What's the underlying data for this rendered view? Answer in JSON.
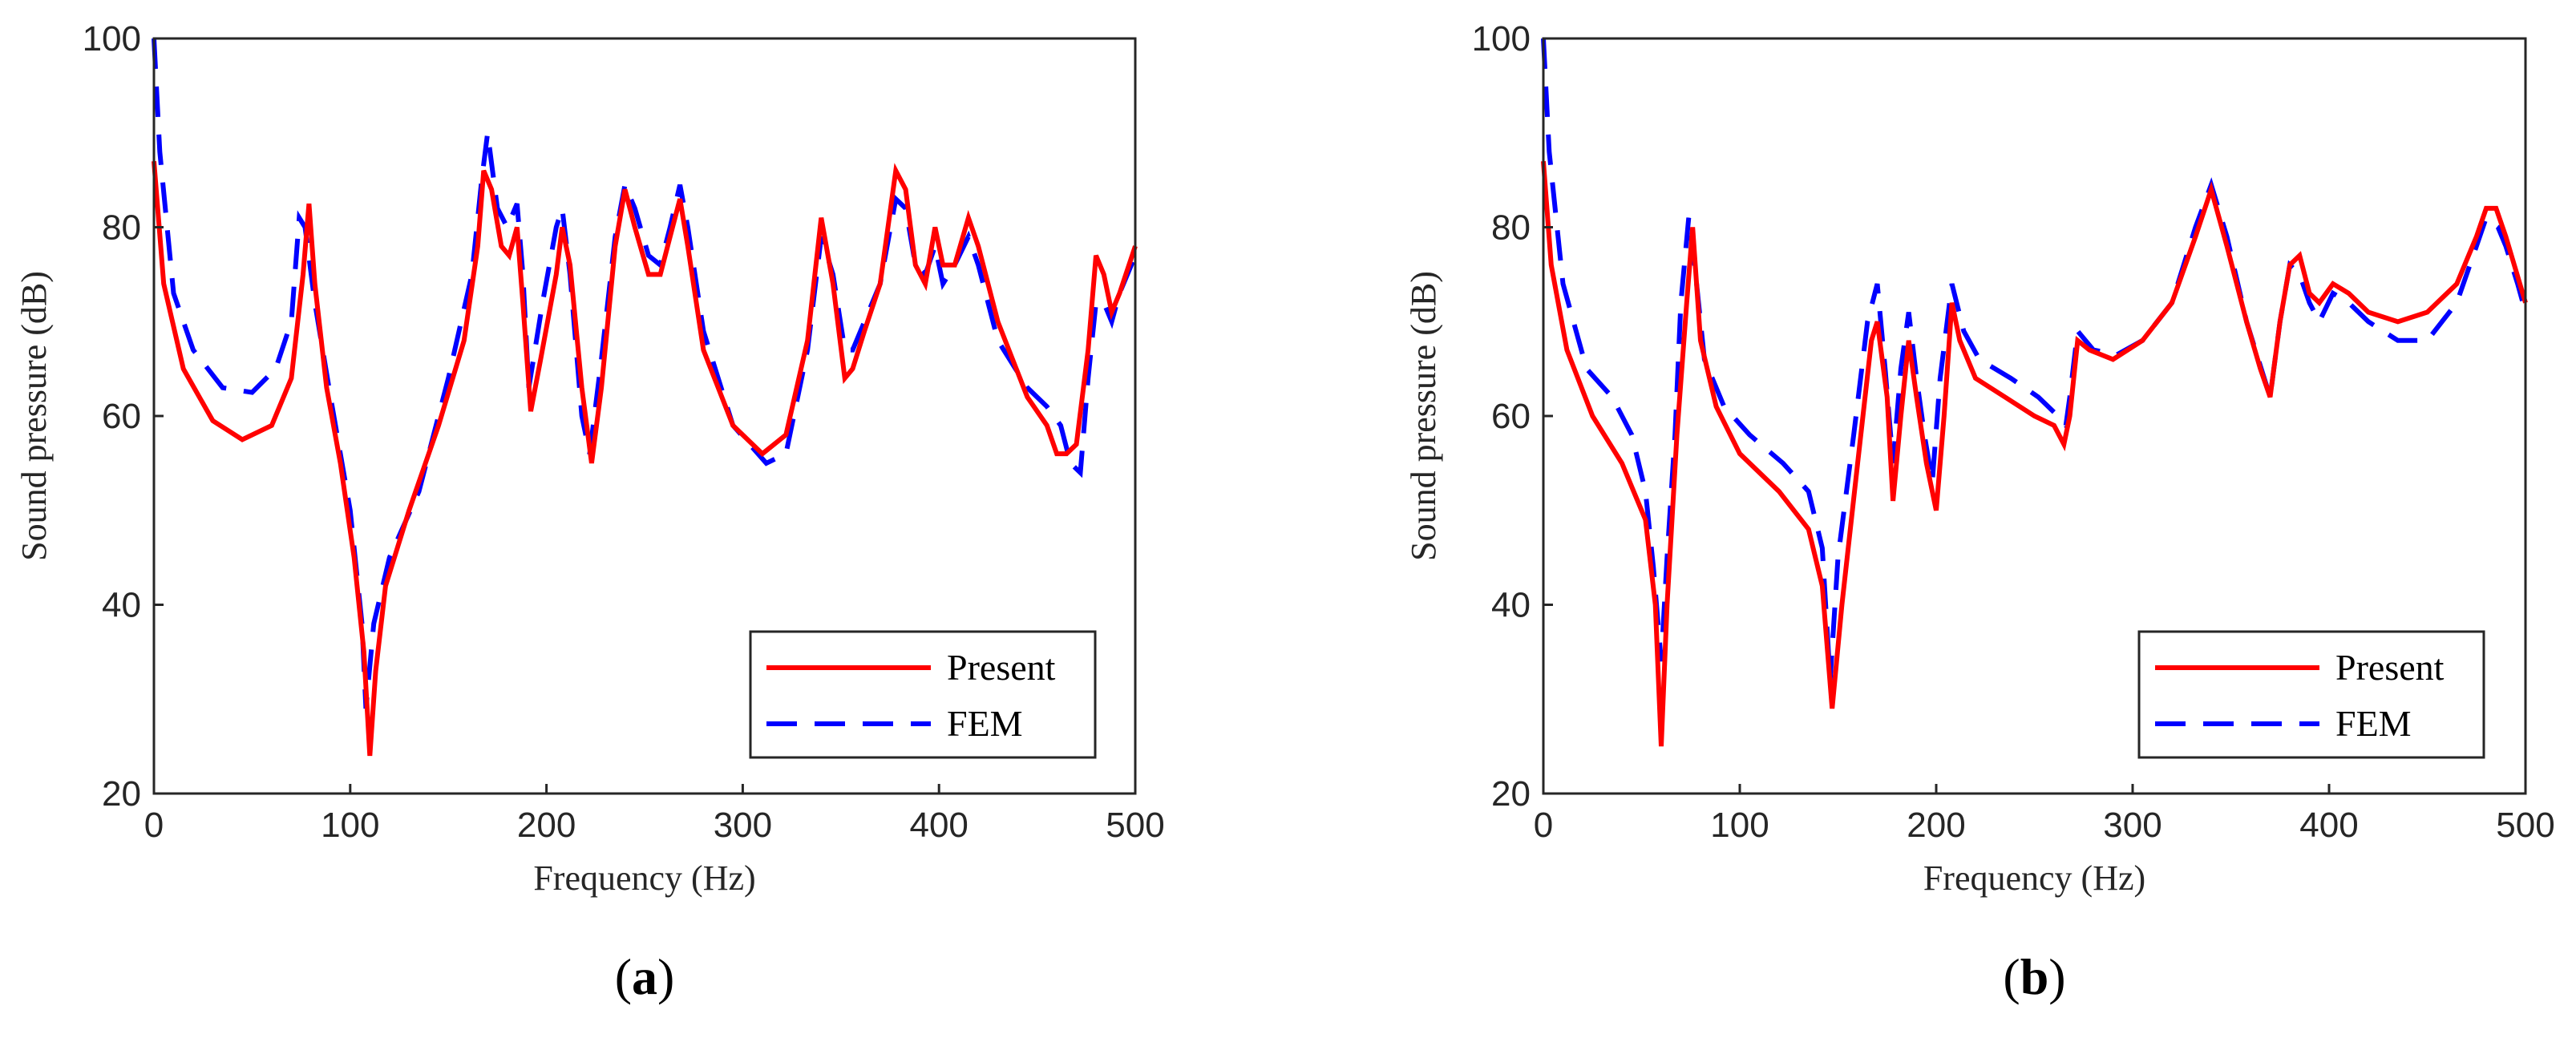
{
  "chart_data": [
    {
      "type": "line",
      "panel_label": "a",
      "xlabel": "Frequency (Hz)",
      "ylabel": "Sound pressure (dB)",
      "xlim": [
        0,
        500
      ],
      "ylim": [
        20,
        100
      ],
      "xticks": [
        0,
        100,
        200,
        300,
        400,
        500
      ],
      "yticks": [
        20,
        40,
        60,
        80,
        100
      ],
      "legend_position": "bottom-right",
      "series": [
        {
          "name": "Present",
          "color": "#ff0000",
          "style": "solid",
          "points": [
            [
              0,
              87
            ],
            [
              5,
              74
            ],
            [
              15,
              65
            ],
            [
              30,
              59.5
            ],
            [
              45,
              57.5
            ],
            [
              60,
              59
            ],
            [
              70,
              64
            ],
            [
              76,
              75
            ],
            [
              79,
              82.5
            ],
            [
              82,
              74
            ],
            [
              88,
              63
            ],
            [
              95,
              55
            ],
            [
              102,
              45
            ],
            [
              107,
              35
            ],
            [
              110,
              24
            ],
            [
              113,
              33
            ],
            [
              118,
              42
            ],
            [
              130,
              50
            ],
            [
              145,
              59
            ],
            [
              158,
              68
            ],
            [
              165,
              78
            ],
            [
              168,
              86
            ],
            [
              172,
              84
            ],
            [
              177,
              78
            ],
            [
              181,
              77
            ],
            [
              185,
              80
            ],
            [
              188,
              72
            ],
            [
              192,
              60.5
            ],
            [
              197,
              66
            ],
            [
              205,
              75
            ],
            [
              208,
              80
            ],
            [
              212,
              76
            ],
            [
              218,
              63
            ],
            [
              223,
              55
            ],
            [
              228,
              63
            ],
            [
              235,
              78
            ],
            [
              240,
              84
            ],
            [
              245,
              80
            ],
            [
              252,
              75
            ],
            [
              258,
              75
            ],
            [
              263,
              79
            ],
            [
              268,
              83
            ],
            [
              272,
              78
            ],
            [
              280,
              67
            ],
            [
              295,
              59
            ],
            [
              310,
              56
            ],
            [
              322,
              58
            ],
            [
              333,
              68
            ],
            [
              340,
              81
            ],
            [
              346,
              74
            ],
            [
              352,
              64
            ],
            [
              356,
              65
            ],
            [
              362,
              69
            ],
            [
              370,
              74
            ],
            [
              378,
              86
            ],
            [
              383,
              84
            ],
            [
              388,
              76
            ],
            [
              393,
              74
            ],
            [
              398,
              80
            ],
            [
              402,
              76
            ],
            [
              408,
              76
            ],
            [
              415,
              81
            ],
            [
              420,
              78
            ],
            [
              430,
              70
            ],
            [
              445,
              62
            ],
            [
              455,
              59
            ],
            [
              460,
              56
            ],
            [
              465,
              56
            ],
            [
              470,
              57
            ],
            [
              476,
              67
            ],
            [
              480,
              77
            ],
            [
              484,
              75
            ],
            [
              488,
              71
            ],
            [
              492,
              73
            ],
            [
              500,
              78
            ]
          ]
        },
        {
          "name": "FEM",
          "color": "#0000ff",
          "style": "dashed",
          "points": [
            [
              0,
              100
            ],
            [
              3,
              88
            ],
            [
              10,
              73
            ],
            [
              20,
              67
            ],
            [
              35,
              63
            ],
            [
              50,
              62.5
            ],
            [
              62,
              65
            ],
            [
              70,
              70
            ],
            [
              74,
              81
            ],
            [
              77,
              80
            ],
            [
              82,
              72
            ],
            [
              90,
              62
            ],
            [
              100,
              50
            ],
            [
              106,
              38
            ],
            [
              108,
              29
            ],
            [
              112,
              38
            ],
            [
              120,
              45
            ],
            [
              135,
              52
            ],
            [
              150,
              64
            ],
            [
              162,
              75
            ],
            [
              167,
              85
            ],
            [
              170,
              90
            ],
            [
              175,
              82
            ],
            [
              180,
              80
            ],
            [
              185,
              82.5
            ],
            [
              188,
              75
            ],
            [
              191,
              63
            ],
            [
              198,
              72
            ],
            [
              205,
              80
            ],
            [
              208,
              82
            ],
            [
              212,
              75
            ],
            [
              218,
              60
            ],
            [
              222,
              56
            ],
            [
              228,
              66
            ],
            [
              235,
              79
            ],
            [
              240,
              84.5
            ],
            [
              245,
              82
            ],
            [
              252,
              77
            ],
            [
              258,
              76
            ],
            [
              263,
              80
            ],
            [
              268,
              84.5
            ],
            [
              272,
              80
            ],
            [
              280,
              69
            ],
            [
              295,
              59
            ],
            [
              312,
              55
            ],
            [
              322,
              56
            ],
            [
              333,
              67
            ],
            [
              340,
              79
            ],
            [
              346,
              75
            ],
            [
              352,
              67
            ],
            [
              356,
              67
            ],
            [
              362,
              70
            ],
            [
              370,
              74
            ],
            [
              378,
              83
            ],
            [
              383,
              82
            ],
            [
              388,
              76
            ],
            [
              393,
              75
            ],
            [
              398,
              78
            ],
            [
              402,
              74
            ],
            [
              408,
              76
            ],
            [
              415,
              79
            ],
            [
              420,
              76
            ],
            [
              430,
              68
            ],
            [
              445,
              63
            ],
            [
              455,
              61
            ],
            [
              462,
              59
            ],
            [
              467,
              55
            ],
            [
              472,
              54
            ],
            [
              476,
              64
            ],
            [
              480,
              72
            ],
            [
              484,
              72
            ],
            [
              488,
              70
            ],
            [
              492,
              73
            ],
            [
              500,
              77
            ]
          ]
        }
      ]
    },
    {
      "type": "line",
      "panel_label": "b",
      "xlabel": "Frequency (Hz)",
      "ylabel": "Sound pressure (dB)",
      "xlim": [
        0,
        500
      ],
      "ylim": [
        20,
        100
      ],
      "xticks": [
        0,
        100,
        200,
        300,
        400,
        500
      ],
      "yticks": [
        20,
        40,
        60,
        80,
        100
      ],
      "legend_position": "bottom-right",
      "series": [
        {
          "name": "Present",
          "color": "#ff0000",
          "style": "solid",
          "points": [
            [
              0,
              87
            ],
            [
              4,
              76
            ],
            [
              12,
              67
            ],
            [
              25,
              60
            ],
            [
              40,
              55
            ],
            [
              52,
              49
            ],
            [
              57,
              40
            ],
            [
              60,
              25
            ],
            [
              63,
              40
            ],
            [
              68,
              58
            ],
            [
              73,
              72
            ],
            [
              76,
              80
            ],
            [
              80,
              68
            ],
            [
              88,
              61
            ],
            [
              100,
              56
            ],
            [
              120,
              52
            ],
            [
              135,
              48
            ],
            [
              142,
              42
            ],
            [
              147,
              29
            ],
            [
              152,
              40
            ],
            [
              160,
              55
            ],
            [
              167,
              68
            ],
            [
              170,
              70
            ],
            [
              175,
              62
            ],
            [
              178,
              51
            ],
            [
              182,
              60
            ],
            [
              186,
              68
            ],
            [
              190,
              62
            ],
            [
              195,
              55
            ],
            [
              200,
              50
            ],
            [
              204,
              60
            ],
            [
              208,
              72
            ],
            [
              212,
              68
            ],
            [
              220,
              64
            ],
            [
              235,
              62
            ],
            [
              250,
              60
            ],
            [
              260,
              59
            ],
            [
              265,
              57
            ],
            [
              268,
              60
            ],
            [
              272,
              68
            ],
            [
              278,
              67
            ],
            [
              290,
              66
            ],
            [
              305,
              68
            ],
            [
              320,
              72
            ],
            [
              332,
              79
            ],
            [
              340,
              84
            ],
            [
              348,
              78
            ],
            [
              358,
              70
            ],
            [
              365,
              65
            ],
            [
              370,
              62
            ],
            [
              375,
              70
            ],
            [
              380,
              76
            ],
            [
              385,
              77
            ],
            [
              390,
              73
            ],
            [
              395,
              72
            ],
            [
              402,
              74
            ],
            [
              410,
              73
            ],
            [
              420,
              71
            ],
            [
              435,
              70
            ],
            [
              450,
              71
            ],
            [
              465,
              74
            ],
            [
              475,
              79
            ],
            [
              480,
              82
            ],
            [
              485,
              82
            ],
            [
              490,
              79
            ],
            [
              500,
              72
            ]
          ]
        },
        {
          "name": "FEM",
          "color": "#0000ff",
          "style": "dashed",
          "points": [
            [
              0,
              100
            ],
            [
              3,
              88
            ],
            [
              10,
              74
            ],
            [
              22,
              65
            ],
            [
              35,
              62
            ],
            [
              45,
              58
            ],
            [
              52,
              52
            ],
            [
              56,
              44
            ],
            [
              60,
              34
            ],
            [
              63,
              45
            ],
            [
              67,
              58
            ],
            [
              70,
              72
            ],
            [
              74,
              81
            ],
            [
              77,
              76
            ],
            [
              82,
              66
            ],
            [
              92,
              61
            ],
            [
              105,
              58
            ],
            [
              122,
              55
            ],
            [
              135,
              52
            ],
            [
              142,
              46
            ],
            [
              146,
              32
            ],
            [
              150,
              45
            ],
            [
              158,
              58
            ],
            [
              165,
              70
            ],
            [
              170,
              74
            ],
            [
              174,
              65
            ],
            [
              178,
              55
            ],
            [
              182,
              65
            ],
            [
              186,
              71
            ],
            [
              190,
              64
            ],
            [
              194,
              58
            ],
            [
              198,
              53
            ],
            [
              202,
              64
            ],
            [
              208,
              74
            ],
            [
              214,
              69
            ],
            [
              222,
              66
            ],
            [
              238,
              64
            ],
            [
              252,
              62
            ],
            [
              262,
              60
            ],
            [
              266,
              59
            ],
            [
              268,
              62
            ],
            [
              272,
              69
            ],
            [
              280,
              67
            ],
            [
              292,
              66.5
            ],
            [
              305,
              68
            ],
            [
              320,
              72
            ],
            [
              332,
              80
            ],
            [
              340,
              84.5
            ],
            [
              348,
              79
            ],
            [
              358,
              70
            ],
            [
              364,
              66
            ],
            [
              370,
              62
            ],
            [
              375,
              70
            ],
            [
              380,
              76
            ],
            [
              385,
              75
            ],
            [
              390,
              72
            ],
            [
              395,
              70
            ],
            [
              402,
              73
            ],
            [
              410,
              72
            ],
            [
              420,
              70
            ],
            [
              435,
              68
            ],
            [
              450,
              68
            ],
            [
              465,
              72
            ],
            [
              475,
              78
            ],
            [
              480,
              81
            ],
            [
              486,
              80
            ],
            [
              490,
              78
            ],
            [
              496,
              74
            ],
            [
              500,
              71
            ]
          ]
        }
      ]
    }
  ]
}
